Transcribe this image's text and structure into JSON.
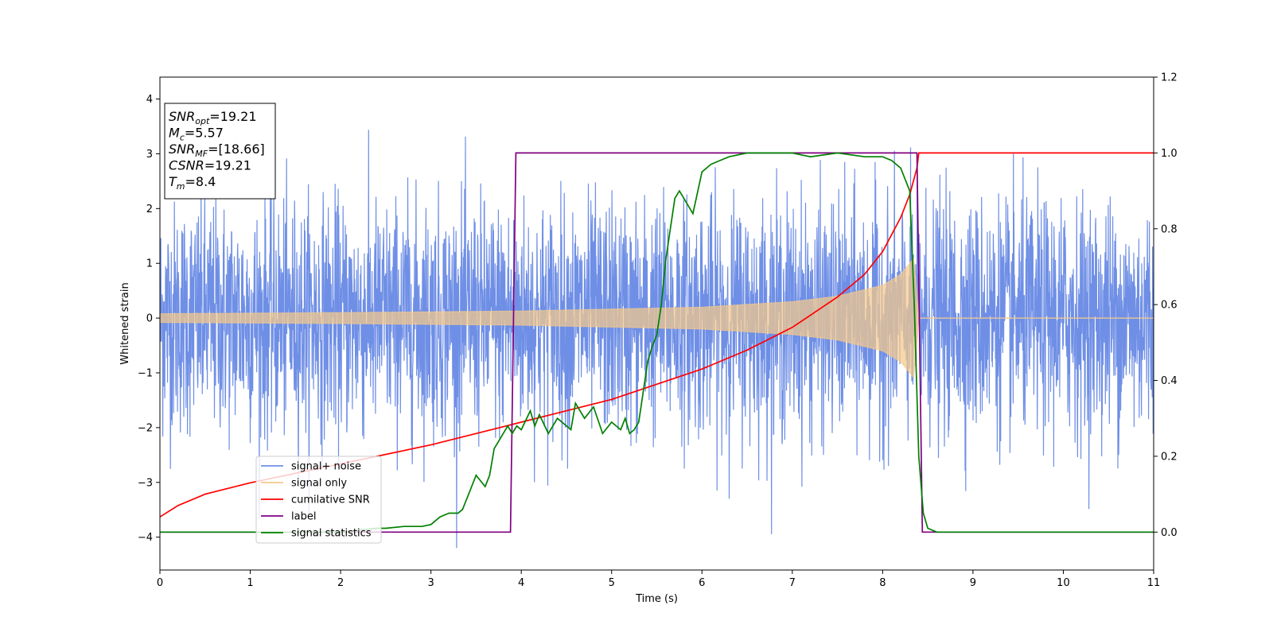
{
  "chart_data": {
    "type": "line",
    "xlabel": "Time (s)",
    "ylabel": "Whitened strain",
    "xlim": [
      0,
      11
    ],
    "ylim_left": [
      -4.6,
      4.4
    ],
    "ylim_right": [
      -0.1,
      1.2
    ],
    "x_ticks": [
      "0",
      "1",
      "2",
      "3",
      "4",
      "5",
      "6",
      "7",
      "8",
      "9",
      "10",
      "11"
    ],
    "y_ticks_left": [
      "−4",
      "−3",
      "−2",
      "−1",
      "0",
      "1",
      "2",
      "3",
      "4"
    ],
    "y_ticks_right": [
      "0.0",
      "0.2",
      "0.4",
      "0.6",
      "0.8",
      "1.0",
      "1.2"
    ],
    "grid": false,
    "legend_position": "lower-left",
    "annotation": {
      "lines": [
        {
          "main": "SNR",
          "sub": "opt",
          "value": "=19.21"
        },
        {
          "main": "M",
          "sub": "c",
          "value": "=5.57"
        },
        {
          "main": "SNR",
          "sub": "MF",
          "value": "=[18.66]"
        },
        {
          "main": "CSNR",
          "sub": "",
          "value": "=19.21"
        },
        {
          "main": "T",
          "sub": "m",
          "value": "=8.4"
        }
      ]
    },
    "series": [
      {
        "name": "signal+ noise",
        "color": "#6f8fe6",
        "axis": "left",
        "kind": "noise",
        "sigma": 1.0,
        "x_range": [
          0,
          11
        ]
      },
      {
        "name": "signal only",
        "color": "#f5c98a",
        "axis": "left",
        "kind": "chirp",
        "merger_time": 8.4,
        "envelope": {
          "x": [
            0,
            2,
            4,
            6,
            7,
            7.5,
            8,
            8.2,
            8.35,
            8.4
          ],
          "y": [
            0.08,
            0.1,
            0.13,
            0.2,
            0.3,
            0.4,
            0.6,
            0.8,
            1.1,
            0
          ]
        }
      },
      {
        "name": "cumilative SNR",
        "color": "#ff0000",
        "axis": "right",
        "x": [
          0,
          0.2,
          0.5,
          1,
          2,
          3,
          3.5,
          4,
          4.5,
          5,
          5.5,
          6,
          6.5,
          7,
          7.5,
          7.8,
          8,
          8.2,
          8.3,
          8.38,
          8.4,
          8.41,
          11
        ],
        "y": [
          0.04,
          0.07,
          0.1,
          0.13,
          0.18,
          0.23,
          0.26,
          0.29,
          0.32,
          0.35,
          0.39,
          0.43,
          0.48,
          0.54,
          0.62,
          0.68,
          0.74,
          0.83,
          0.89,
          0.96,
          1.0,
          1.0,
          1.0
        ]
      },
      {
        "name": "label",
        "color": "#800080",
        "axis": "right",
        "x": [
          0,
          3.88,
          3.94,
          8.38,
          8.44,
          11
        ],
        "y": [
          0,
          0,
          1,
          1,
          0,
          0
        ]
      },
      {
        "name": "signal statistics",
        "color": "#008000",
        "axis": "right",
        "x": [
          0,
          0.5,
          1,
          1.5,
          2,
          2.4,
          2.5,
          2.7,
          2.9,
          3.0,
          3.1,
          3.2,
          3.3,
          3.35,
          3.4,
          3.5,
          3.6,
          3.65,
          3.7,
          3.8,
          3.85,
          3.9,
          3.95,
          4.0,
          4.1,
          4.15,
          4.2,
          4.3,
          4.4,
          4.55,
          4.6,
          4.7,
          4.8,
          4.9,
          5.0,
          5.1,
          5.15,
          5.2,
          5.25,
          5.3,
          5.4,
          5.45,
          5.5,
          5.55,
          5.6,
          5.7,
          5.75,
          5.8,
          5.9,
          6.0,
          6.1,
          6.2,
          6.3,
          6.5,
          6.7,
          7.0,
          7.2,
          7.5,
          7.8,
          8.0,
          8.1,
          8.2,
          8.3,
          8.35,
          8.4,
          8.45,
          8.5,
          8.6,
          9.0,
          11
        ],
        "y": [
          0.0,
          0.0,
          0.0,
          0.0,
          0.0,
          0.01,
          0.01,
          0.015,
          0.015,
          0.02,
          0.04,
          0.05,
          0.05,
          0.06,
          0.09,
          0.15,
          0.12,
          0.15,
          0.22,
          0.26,
          0.28,
          0.26,
          0.28,
          0.27,
          0.32,
          0.28,
          0.31,
          0.26,
          0.3,
          0.27,
          0.34,
          0.3,
          0.33,
          0.26,
          0.29,
          0.27,
          0.3,
          0.26,
          0.27,
          0.29,
          0.45,
          0.49,
          0.52,
          0.6,
          0.72,
          0.88,
          0.9,
          0.88,
          0.84,
          0.95,
          0.97,
          0.98,
          0.99,
          1.0,
          1.0,
          1.0,
          0.99,
          1.0,
          0.99,
          0.99,
          0.98,
          0.96,
          0.9,
          0.6,
          0.2,
          0.05,
          0.01,
          0.0,
          0.0,
          0.0
        ]
      }
    ]
  }
}
